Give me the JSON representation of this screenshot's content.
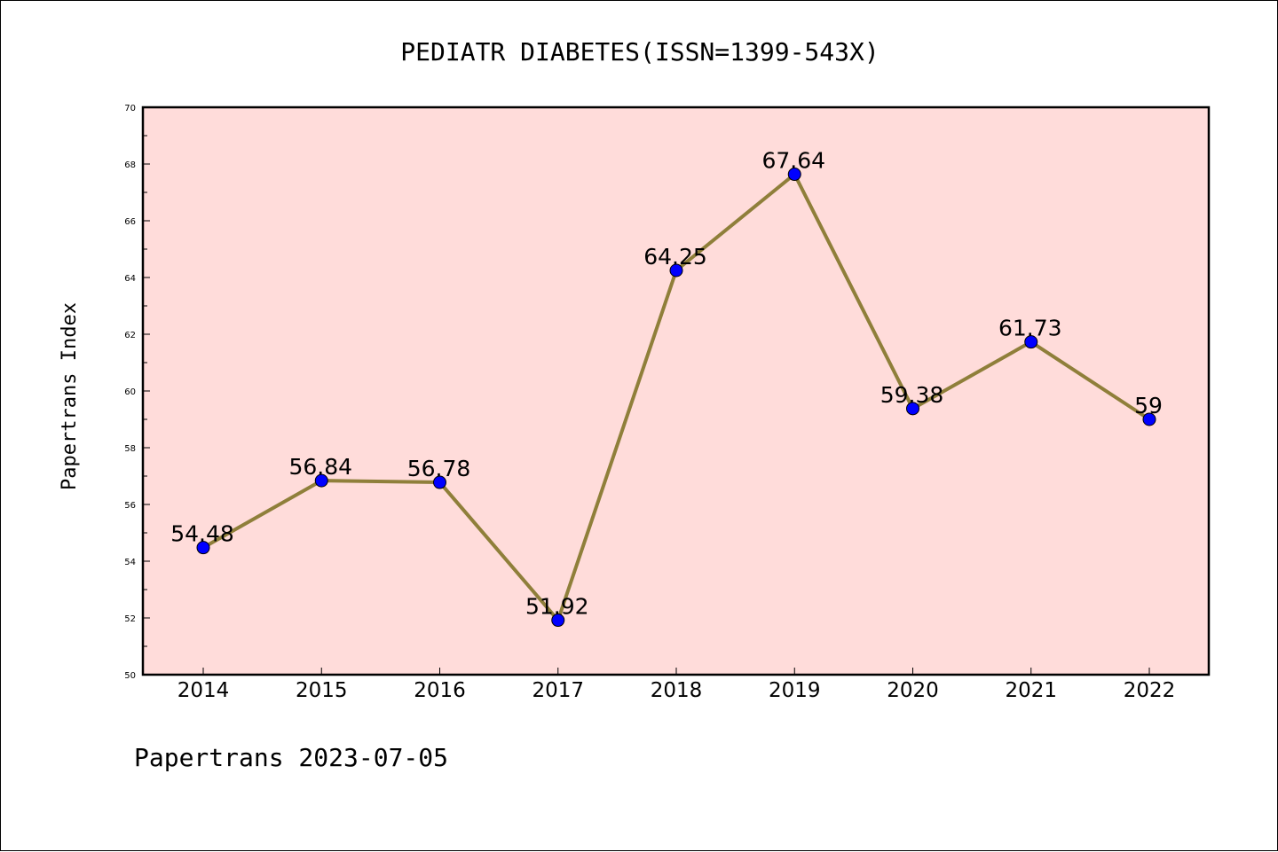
{
  "chart_data": {
    "type": "line",
    "title": "PEDIATR DIABETES(ISSN=1399-543X)",
    "xlabel": "",
    "ylabel": "Papertrans Index",
    "categories": [
      "2014",
      "2015",
      "2016",
      "2017",
      "2018",
      "2019",
      "2020",
      "2021",
      "2022"
    ],
    "series": [
      {
        "values": [
          54.48,
          56.84,
          56.78,
          51.92,
          64.25,
          67.64,
          59.38,
          61.73,
          59
        ],
        "labels": [
          "54.48",
          "56.84",
          "56.78",
          "51.92",
          "64.25",
          "67.64",
          "59.38",
          "61.73",
          "59"
        ],
        "line_color": "#8f7f3a",
        "marker_color": "#0000ff"
      }
    ],
    "ylim": [
      50,
      70
    ],
    "yticks": [
      "50",
      "52",
      "54",
      "56",
      "58",
      "60",
      "62",
      "64",
      "66",
      "68",
      "70"
    ],
    "plot_background": "#ffdcda",
    "grid": false,
    "legend": "none"
  },
  "footer": {
    "text": "Papertrans 2023-07-05"
  }
}
